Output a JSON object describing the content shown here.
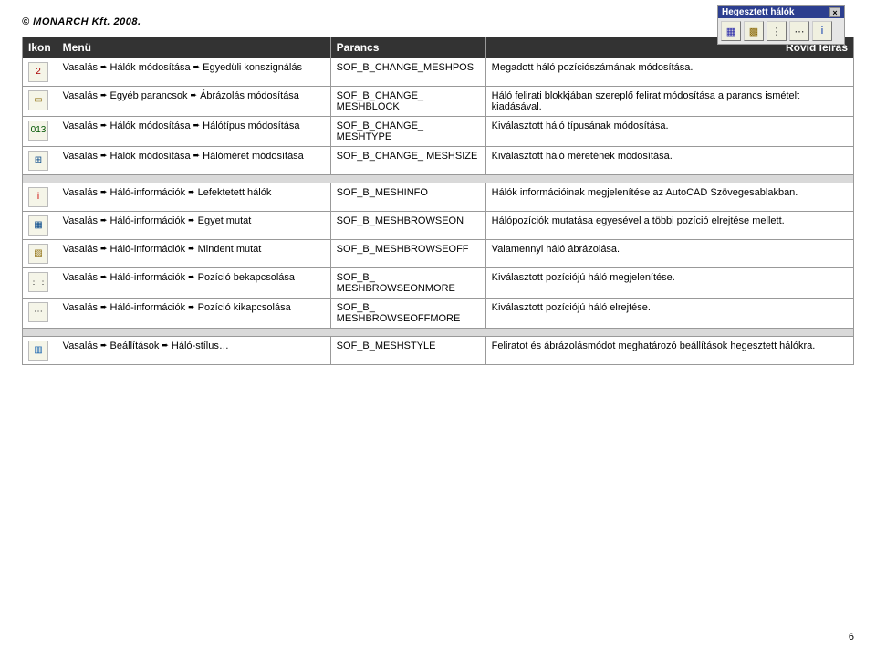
{
  "copyright": "© MONARCH Kft. 2008.",
  "page_number": "6",
  "arrow_glyph": "➨",
  "toolbar": {
    "title": "Hegesztett hálók",
    "close_label": "×",
    "icons": [
      {
        "name": "mesh-icon",
        "glyph": "▦",
        "color": "#2a2aaa"
      },
      {
        "name": "hatch-icon",
        "glyph": "▩",
        "color": "#886600"
      },
      {
        "name": "dots-a-icon",
        "glyph": "⋮",
        "color": "#333333"
      },
      {
        "name": "dots-b-icon",
        "glyph": "⋯",
        "color": "#333333"
      },
      {
        "name": "info-icon",
        "glyph": "i",
        "color": "#0033aa"
      }
    ]
  },
  "table": {
    "headers": {
      "icon": "Ikon",
      "menu": "Menü",
      "command": "Parancs",
      "description": "Rövid leírás"
    },
    "groups": [
      {
        "rows": [
          {
            "icon": {
              "name": "num2-icon",
              "glyph": "2",
              "color": "#aa0000"
            },
            "menu": [
              "Vasalás",
              "Hálók módosítása",
              "Egyedüli konszignálás"
            ],
            "command": "SOF_B_CHANGE_MESHPOS",
            "description": "Megadott háló pozíciószámának módosítása."
          },
          {
            "icon": {
              "name": "block-icon",
              "glyph": "▭",
              "color": "#886600"
            },
            "menu": [
              "Vasalás",
              "Egyéb parancsok",
              "Ábrázolás módosítása"
            ],
            "command": "SOF_B_CHANGE_ MESHBLOCK",
            "description": "Háló felirati blokkjában szereplő felirat módosítása a parancs ismételt kiadásával."
          },
          {
            "icon": {
              "name": "type-icon",
              "glyph": "013",
              "color": "#005500"
            },
            "menu": [
              "Vasalás",
              "Hálók módosítása",
              "Hálótípus módosítása"
            ],
            "command": "SOF_B_CHANGE_ MESHTYPE",
            "description": "Kiválasztott háló típusának módosítása."
          },
          {
            "icon": {
              "name": "size-icon",
              "glyph": "⊞",
              "color": "#004488"
            },
            "menu": [
              "Vasalás",
              "Hálók módosítása",
              "Hálóméret módosítása"
            ],
            "command": "SOF_B_CHANGE_ MESHSIZE",
            "description": "Kiválasztott háló méretének módosítása."
          }
        ]
      },
      {
        "rows": [
          {
            "icon": {
              "name": "info-red-icon",
              "glyph": "i",
              "color": "#cc0000"
            },
            "menu": [
              "Vasalás",
              "Háló-információk",
              "Lefektetett hálók"
            ],
            "command": "SOF_B_MESHINFO",
            "description": "Hálók információinak megjelenítése az AutoCAD Szövegesablakban."
          },
          {
            "icon": {
              "name": "browse-on-icon",
              "glyph": "▦",
              "color": "#004488"
            },
            "menu": [
              "Vasalás",
              "Háló-információk",
              "Egyet mutat"
            ],
            "command": "SOF_B_MESHBROWSEON",
            "description": "Hálópozíciók mutatása egyesével a többi pozíció elrejtése mellett."
          },
          {
            "icon": {
              "name": "browse-off-icon",
              "glyph": "▨",
              "color": "#886600"
            },
            "menu": [
              "Vasalás",
              "Háló-információk",
              "Mindent mutat"
            ],
            "command": "SOF_B_MESHBROWSEOFF",
            "description": "Valamennyi háló ábrázolása."
          },
          {
            "icon": {
              "name": "pos-on-icon",
              "glyph": "⋮⋮",
              "color": "#333333"
            },
            "menu": [
              "Vasalás",
              "Háló-információk",
              "Pozíció bekapcsolása"
            ],
            "command": "SOF_B_ MESHBROWSEONMORE",
            "description": "Kiválasztott pozíciójú háló megjelenítése."
          },
          {
            "icon": {
              "name": "pos-off-icon",
              "glyph": "⋯",
              "color": "#333333"
            },
            "menu": [
              "Vasalás",
              "Háló-információk",
              "Pozíció kikapcsolása"
            ],
            "command": "SOF_B_ MESHBROWSEOFFMORE",
            "description": "Kiválasztott pozíciójú háló elrejtése."
          }
        ]
      },
      {
        "rows": [
          {
            "icon": {
              "name": "style-icon",
              "glyph": "▥",
              "color": "#0055aa"
            },
            "menu": [
              "Vasalás",
              "Beállítások",
              "Háló-stílus…"
            ],
            "command": "SOF_B_MESHSTYLE",
            "description": "Feliratot és ábrázolásmódot meghatározó beállítások hegesztett hálókra."
          }
        ]
      }
    ]
  }
}
